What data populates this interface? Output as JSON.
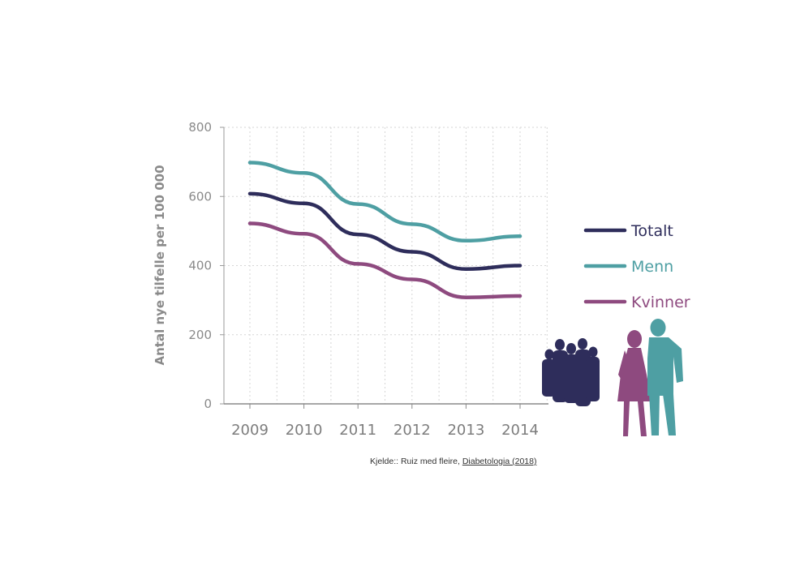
{
  "chart_data": {
    "type": "line",
    "title": "",
    "xlabel": "",
    "ylabel": "Antal nye tilfelle per 100 000",
    "x": [
      "2009",
      "2010",
      "2011",
      "2012",
      "2013",
      "2014"
    ],
    "xlim": [
      2009,
      2014
    ],
    "ylim": [
      0,
      800
    ],
    "yticks": [
      "0",
      "200",
      "400",
      "600",
      "800"
    ],
    "grid": true,
    "legend_position": "right",
    "series": [
      {
        "name": "Totalt",
        "color": "#2e2d5b",
        "values": [
          608,
          580,
          490,
          440,
          390,
          400
        ]
      },
      {
        "name": "Menn",
        "color": "#4e9fa3",
        "values": [
          698,
          668,
          578,
          520,
          472,
          485
        ]
      },
      {
        "name": "Kvinner",
        "color": "#8e4a7f",
        "values": [
          522,
          492,
          405,
          360,
          308,
          312
        ]
      }
    ]
  },
  "source": {
    "prefix": "Kjelde:: Ruiz med fleire, ",
    "link": "Diabetologia (2018)"
  },
  "illustration_icons": [
    "crowd-silhouette-icon",
    "woman-silhouette-icon",
    "man-silhouette-icon"
  ]
}
